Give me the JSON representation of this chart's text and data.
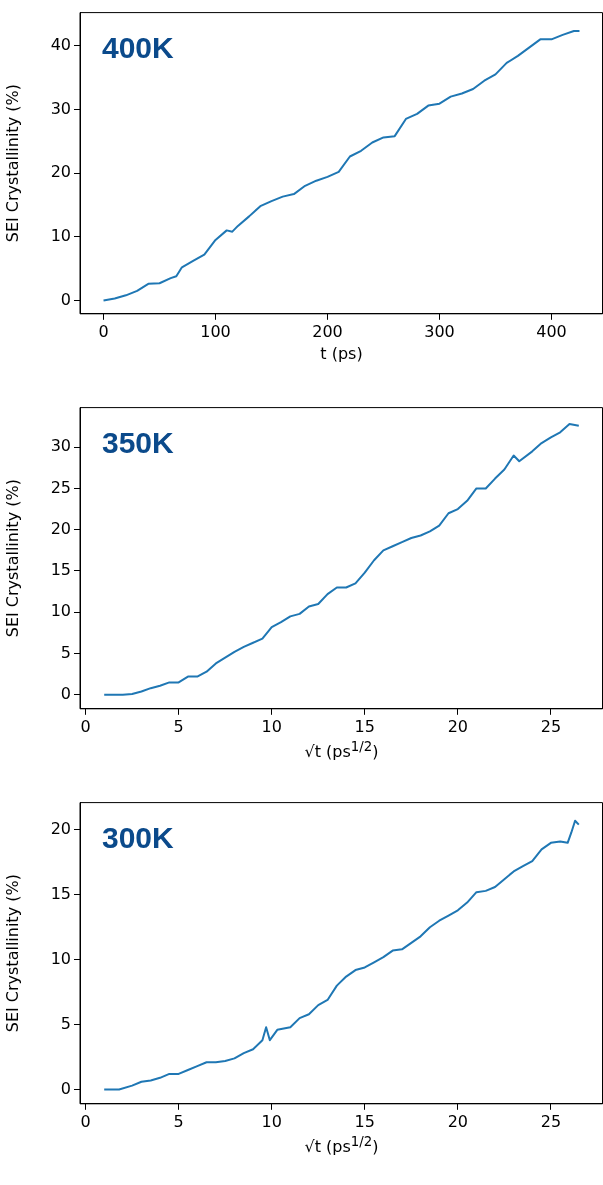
{
  "chart_data": [
    {
      "type": "line",
      "xlabel": "t (ps)",
      "ylabel": "SEI Crystallinity (%)",
      "annotations": [
        "400K"
      ],
      "xlim": [
        -21,
        446
      ],
      "ylim": [
        -2.1,
        45.2
      ],
      "xticks": [
        0,
        100,
        200,
        300,
        400
      ],
      "yticks": [
        0,
        10,
        20,
        30,
        40
      ],
      "grid": false,
      "series": [
        {
          "color": "#1f77b4",
          "x": [
            0,
            10,
            20,
            30,
            40,
            50,
            60,
            65,
            70,
            80,
            90,
            100,
            110,
            115,
            120,
            130,
            140,
            150,
            160,
            170,
            180,
            190,
            200,
            210,
            220,
            230,
            240,
            250,
            260,
            270,
            280,
            290,
            300,
            310,
            320,
            330,
            340,
            350,
            360,
            370,
            380,
            390,
            400,
            410,
            420,
            425
          ],
          "values": [
            0,
            0.3,
            0.8,
            1.5,
            2.6,
            2.7,
            3.5,
            3.8,
            5.2,
            6.2,
            7.2,
            9.5,
            11,
            10.8,
            11.7,
            13.2,
            14.8,
            15.6,
            16.3,
            16.7,
            18,
            18.8,
            19.4,
            20.2,
            22.6,
            23.5,
            24.8,
            25.6,
            25.8,
            28.5,
            29.3,
            30.6,
            30.9,
            32,
            32.5,
            33.2,
            34.5,
            35.5,
            37.3,
            38.4,
            39.7,
            41,
            41,
            41.7,
            42.3,
            42.3
          ]
        }
      ]
    },
    {
      "type": "line",
      "xlabel": "√t (ps$^{1/2}$)",
      "ylabel": "SEI Crystallinity (%)",
      "annotations": [
        "350K"
      ],
      "xlim": [
        -0.3,
        27.8
      ],
      "ylim": [
        -1.7,
        34.8
      ],
      "xticks": [
        0,
        5,
        10,
        15,
        20,
        25
      ],
      "yticks": [
        0,
        5,
        10,
        15,
        20,
        25,
        30
      ],
      "grid": false,
      "series": [
        {
          "color": "#1f77b4",
          "x": [
            1,
            2,
            2.5,
            3,
            3.5,
            4,
            4.5,
            5,
            5.5,
            6,
            6.5,
            7,
            7.5,
            8,
            8.5,
            9,
            9.5,
            10,
            10.5,
            11,
            11.5,
            12,
            12.5,
            13,
            13.5,
            14,
            14.5,
            15,
            15.5,
            16,
            16.5,
            17,
            17.5,
            18,
            18.5,
            19,
            19.5,
            20,
            20.5,
            21,
            21.5,
            22,
            22.5,
            23,
            23.3,
            24,
            24.5,
            25,
            25.5,
            26,
            26.5
          ],
          "values": [
            0,
            0,
            0.1,
            0.4,
            0.8,
            1.1,
            1.5,
            1.5,
            2.2,
            2.2,
            2.8,
            3.8,
            4.5,
            5.2,
            5.8,
            6.3,
            6.8,
            8.2,
            8.8,
            9.5,
            9.8,
            10.7,
            11,
            12.2,
            13,
            13,
            13.5,
            14.8,
            16.3,
            17.5,
            18,
            18.5,
            19,
            19.3,
            19.8,
            20.5,
            22,
            22.5,
            23.5,
            25,
            25,
            26.2,
            27.3,
            29,
            28.3,
            29.5,
            30.5,
            31.2,
            31.8,
            32.8,
            32.6
          ]
        }
      ]
    },
    {
      "type": "line",
      "xlabel": "√t (ps$^{1/2}$)",
      "ylabel": "SEI Crystallinity (%)",
      "annotations": [
        "300K"
      ],
      "xlim": [
        -0.3,
        27.8
      ],
      "ylim": [
        -1.1,
        22.1
      ],
      "xticks": [
        0,
        5,
        10,
        15,
        20,
        25
      ],
      "yticks": [
        0,
        5,
        10,
        15,
        20
      ],
      "grid": false,
      "series": [
        {
          "color": "#1f77b4",
          "x": [
            1,
            1.8,
            2.5,
            3,
            3.5,
            4,
            4.5,
            5,
            5.5,
            6,
            6.5,
            7,
            7.5,
            8,
            8.5,
            9,
            9.5,
            9.7,
            9.9,
            10.3,
            11,
            11.5,
            12,
            12.5,
            13,
            13.5,
            14,
            14.5,
            15,
            15.5,
            16,
            16.5,
            17,
            17.5,
            18,
            18.5,
            19,
            19.5,
            20,
            20.5,
            21,
            21.5,
            22,
            22.5,
            23,
            23.5,
            24,
            24.5,
            25,
            25.5,
            25.9,
            26.1,
            26.3,
            26.5
          ],
          "values": [
            0,
            0,
            0.3,
            0.6,
            0.7,
            0.9,
            1.2,
            1.2,
            1.5,
            1.8,
            2.1,
            2.1,
            2.2,
            2.4,
            2.8,
            3.1,
            3.8,
            4.8,
            3.8,
            4.6,
            4.8,
            5.5,
            5.8,
            6.5,
            6.9,
            8,
            8.7,
            9.2,
            9.4,
            9.8,
            10.2,
            10.7,
            10.8,
            11.3,
            11.8,
            12.5,
            13,
            13.4,
            13.8,
            14.4,
            15.2,
            15.3,
            15.6,
            16.2,
            16.8,
            17.2,
            17.6,
            18.5,
            19,
            19.1,
            19,
            19.8,
            20.7,
            20.4
          ]
        }
      ]
    }
  ]
}
